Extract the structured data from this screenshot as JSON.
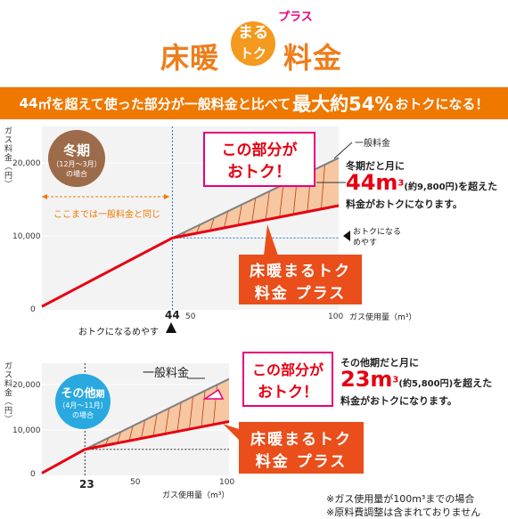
{
  "header": {
    "logo_left": "床暖",
    "logo_circle_top": "まる",
    "logo_circle_bottom": "トク",
    "logo_right": "料金",
    "logo_plus": "プラス"
  },
  "banner": {
    "part1": "44",
    "unit1": "㎡",
    "part2": "を超えて使った部分が一般料金と比べて",
    "emph": "最大約54%",
    "part3": "おトクになる！"
  },
  "colors": {
    "orange": "#ee7800",
    "red_line": "#e60012",
    "gray_line": "#808080",
    "savings_fill": "#f6c7a1",
    "winter_badge": "#9c6b4a",
    "other_badge": "#29a9e0",
    "dotted_blue": "#1e7ac8"
  },
  "chart_data": [
    {
      "type": "line",
      "badge_title": "冬期",
      "badge_sub1": "（12月〜3月）",
      "badge_sub2": "の場合",
      "ylabel": "ガス料金（円）",
      "xlabel": "ガス使用量（m³）",
      "xlim": [
        0,
        100
      ],
      "ylim": [
        0,
        25000
      ],
      "yticks": [
        "20,000",
        "10,000",
        "0"
      ],
      "ytick_values": [
        20000,
        10000,
        0
      ],
      "xticks": [
        "44",
        "50",
        "100"
      ],
      "xtick_values": [
        44,
        50,
        100
      ],
      "series": [
        {
          "name": "一般料金",
          "x": [
            0,
            44,
            100
          ],
          "y": [
            450,
            9800,
            20700
          ]
        },
        {
          "x": [
            0,
            44,
            100
          ],
          "y": [
            450,
            9800,
            14200
          ]
        }
      ],
      "threshold_x": 44,
      "annotation_range": "ここまでは一般料金と同じ",
      "annotation_threshold": "おトクになるめやす",
      "annotation_right_mark": "おトクになる\nめやす",
      "callout_savings_1": "この部分が",
      "callout_savings_2": "おトク！",
      "callout_plan_1": "床暖まるトク",
      "callout_plan_2": "料金 プラス",
      "legend_general": "一般料金",
      "note_line1": "冬期だと月に",
      "note_big": "44m",
      "note_sup": "3",
      "note_paren": "(約9,800円)",
      "note_after": "を超えた",
      "note_line3": "料金がおトクになります。"
    },
    {
      "type": "line",
      "badge_title": "その他",
      "badge_title_small": "期",
      "badge_sub1": "（4月〜11月）",
      "badge_sub2": "の場合",
      "ylabel": "ガス料金（円）",
      "xlabel": "ガス使用量（m³）",
      "xlim": [
        0,
        100
      ],
      "ylim": [
        0,
        25000
      ],
      "yticks": [
        "20,000",
        "10,000",
        "0"
      ],
      "ytick_values": [
        20000,
        10000,
        0
      ],
      "xticks": [
        "23",
        "50",
        "100"
      ],
      "xtick_values": [
        23,
        50,
        100
      ],
      "series": [
        {
          "name": "一般料金",
          "x": [
            0,
            23,
            100
          ],
          "y": [
            500,
            5800,
            21500
          ]
        },
        {
          "x": [
            0,
            23,
            100
          ],
          "y": [
            500,
            5800,
            12000
          ]
        }
      ],
      "threshold_x": 23,
      "callout_savings_1": "この部分が",
      "callout_savings_2": "おトク！",
      "callout_plan_1": "床暖まるトク",
      "callout_plan_2": "料金 プラス",
      "legend_general": "一般料金",
      "note_line1": "その他期だと月に",
      "note_big": "23m",
      "note_sup": "3",
      "note_paren": "(約5,800円)",
      "note_after": "を超えた",
      "note_line3": "料金がおトクになります。"
    }
  ],
  "footnotes": {
    "line1": "※ガス使用量が100m³までの場合",
    "line2": "※原料費調整は含まれておりません"
  }
}
